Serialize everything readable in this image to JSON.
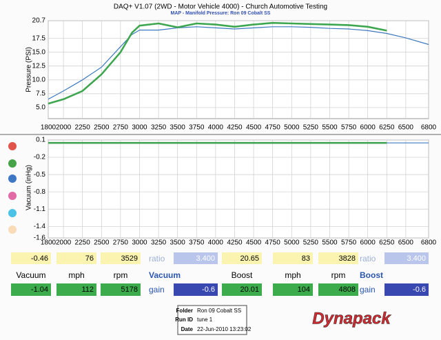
{
  "chart_data": [
    {
      "type": "line",
      "title": "DAQ+ V1.07 (2WD - Motor Vehicle 4000) - Church Automotive Testing",
      "subtitle": "MAP - Manifold Pressure: Ron 09 Cobalt SS",
      "y_label": "Pressure (PSI)",
      "x": [
        1800,
        2000,
        2250,
        2500,
        2750,
        2900,
        3000,
        3250,
        3500,
        3750,
        4000,
        4250,
        4500,
        4750,
        5000,
        5250,
        5500,
        5750,
        6000,
        6250,
        6500,
        6800
      ],
      "series": [
        {
          "color": "#3b78c0",
          "values": [
            6.5,
            8,
            10,
            12.3,
            16,
            18.2,
            19.0,
            19.0,
            19.4,
            19.6,
            19.4,
            19.2,
            19.4,
            19.6,
            19.6,
            19.5,
            19.3,
            19.2,
            18.9,
            18.4,
            17.6,
            16.4
          ]
        },
        {
          "color": "#3fa650",
          "values": [
            5.7,
            6.5,
            8,
            11,
            15,
            18.5,
            19.8,
            20.2,
            19.5,
            20.2,
            20.0,
            19.6,
            20.0,
            20.3,
            20.2,
            20.1,
            20.0,
            19.9,
            19.6,
            18.9,
            null,
            null
          ]
        }
      ],
      "xlim": [
        1800,
        6800
      ],
      "xticks": [
        1800,
        2000,
        2250,
        2500,
        2750,
        3000,
        3250,
        3500,
        3750,
        4000,
        4250,
        4500,
        4750,
        5000,
        5250,
        5500,
        5750,
        6000,
        6250,
        6500,
        6800
      ],
      "ylim": [
        3,
        20.7
      ],
      "yticks": [
        {
          "value": 5,
          "label": "5.0"
        },
        7.5,
        {
          "value": 10,
          "label": "10.0"
        },
        12.5,
        {
          "value": 15,
          "label": "15.0"
        },
        17.5,
        20.7
      ],
      "grid": true
    },
    {
      "type": "line",
      "y_label": "Vacuum (inHg)",
      "x": [
        1800,
        2000,
        2250,
        2500,
        2750,
        3000,
        3250,
        3500,
        3750,
        4000,
        4250,
        4500,
        4750,
        5000,
        5250,
        5500,
        5750,
        6000,
        6250,
        6500,
        6800
      ],
      "series": [
        {
          "color": "#3b78c0",
          "values": [
            0.05,
            0.05,
            0.05,
            0.05,
            0.05,
            0.05,
            0.05,
            0.05,
            0.05,
            0.05,
            0.05,
            0.05,
            0.05,
            0.05,
            0.05,
            0.05,
            0.05,
            0.05,
            0.05,
            0.05,
            0.05
          ]
        },
        {
          "color": "#3fa650",
          "values": [
            0.05,
            0.05,
            0.05,
            0.05,
            0.05,
            0.05,
            0.05,
            0.05,
            0.05,
            0.05,
            0.05,
            0.05,
            0.05,
            0.05,
            0.05,
            0.05,
            0.05,
            0.05,
            0.05,
            null,
            null
          ]
        }
      ],
      "xlim": [
        1800,
        6800
      ],
      "xticks": [
        1800,
        2000,
        2250,
        2500,
        2750,
        3000,
        3250,
        3500,
        3750,
        4000,
        4250,
        4500,
        4750,
        5000,
        5250,
        5500,
        5750,
        6000,
        6250,
        6500,
        6800
      ],
      "ylim": [
        -1.6,
        0.1
      ],
      "yticks": [
        0.1,
        -0.2,
        -0.5,
        -0.8,
        -1.1,
        -1.4,
        -1.6
      ],
      "grid": true
    }
  ],
  "readouts": [
    {
      "top": [
        "-0.46",
        "76",
        "3529"
      ],
      "ratio_label": "ratio",
      "ratio": "3.400",
      "headers": [
        "Vacuum",
        "mph",
        "rpm"
      ],
      "mode": "Vacuum",
      "values": [
        "-1.04",
        "112",
        "5178"
      ],
      "gain_label": "gain",
      "gain": "-0.6"
    },
    {
      "top": [
        "20.65",
        "83",
        "3828"
      ],
      "ratio_label": "ratio",
      "ratio": "3.400",
      "headers": [
        "Boost",
        "mph",
        "rpm"
      ],
      "mode": "Boost",
      "values": [
        "20.01",
        "104",
        "4808"
      ],
      "gain_label": "gain",
      "gain": "-0.6"
    }
  ],
  "footer": {
    "folder_label": "Folder",
    "folder": "Ron 09 Cobalt SS",
    "run_label": "Run ID",
    "run": "tune 1",
    "date_label": "Date",
    "date": "22-Jun-2010 13:23:02",
    "logo": "Dynapack"
  }
}
